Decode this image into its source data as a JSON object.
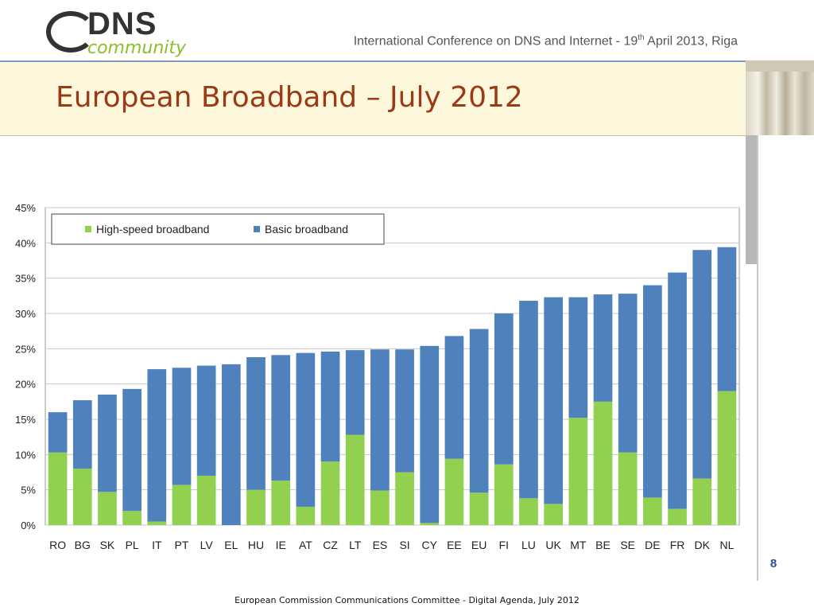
{
  "header": {
    "logo_main": "DNS",
    "logo_sub": "community",
    "conference_prefix": "International Conference on DNS and Internet  - 19",
    "conference_sup": "th",
    "conference_suffix": " April 2013, Riga"
  },
  "slide": {
    "title": "European Broadband – July 2012",
    "page_number": "8"
  },
  "footer": {
    "text": "European Commission Communications Committee  - Digital Agenda, July 2012"
  },
  "colors": {
    "high_speed": "#92d050",
    "basic": "#4f81bd"
  },
  "chart_data": {
    "type": "bar",
    "stacked": true,
    "categories": [
      "RO",
      "BG",
      "SK",
      "PL",
      "IT",
      "PT",
      "LV",
      "EL",
      "HU",
      "IE",
      "AT",
      "CZ",
      "LT",
      "ES",
      "SI",
      "CY",
      "EE",
      "EU",
      "FI",
      "LU",
      "UK",
      "MT",
      "BE",
      "SE",
      "DE",
      "FR",
      "DK",
      "NL"
    ],
    "series": [
      {
        "name": "High-speed broadband",
        "color": "#92d050",
        "values": [
          10.3,
          8.0,
          4.7,
          2.0,
          0.5,
          5.7,
          7.0,
          0.0,
          5.0,
          6.3,
          2.6,
          9.0,
          12.8,
          4.9,
          7.5,
          0.3,
          9.4,
          4.6,
          8.6,
          3.8,
          3.0,
          15.2,
          17.5,
          10.3,
          3.9,
          2.3,
          6.6,
          19.0
        ]
      },
      {
        "name": "Basic broadband",
        "color": "#4f81bd",
        "values": [
          5.7,
          9.7,
          13.8,
          17.3,
          21.6,
          16.6,
          15.6,
          22.8,
          18.8,
          17.8,
          21.8,
          15.6,
          12.0,
          20.0,
          17.4,
          25.1,
          17.4,
          23.2,
          21.4,
          28.0,
          29.3,
          17.1,
          15.2,
          22.5,
          30.1,
          33.5,
          32.4,
          20.4
        ]
      }
    ],
    "yaxis": {
      "min": 0,
      "max": 45,
      "step": 5,
      "tick_labels": [
        "0%",
        "5%",
        "10%",
        "15%",
        "20%",
        "25%",
        "30%",
        "35%",
        "40%",
        "45%"
      ]
    },
    "legend_position": "top-left",
    "grid": true
  }
}
